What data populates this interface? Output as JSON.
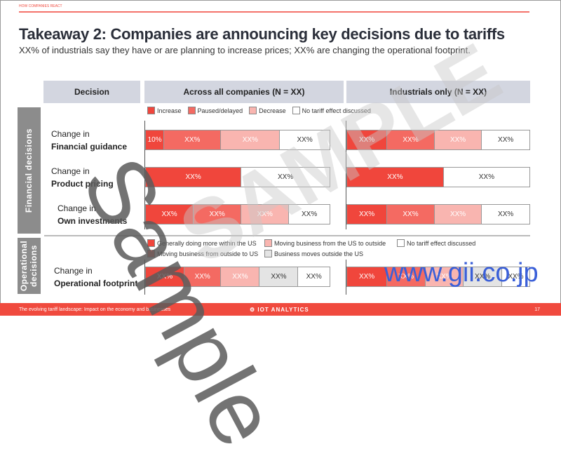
{
  "section": "HOW COMPANIES REACT",
  "title": "Takeaway 2: Companies are announcing key decisions due to tariffs",
  "subtitle": "XX% of industrials say they have or are planning to increase prices; XX% are changing the operational footprint.",
  "headers": {
    "decision": "Decision",
    "all": "Across all companies (N = XX)",
    "industrials": "Industrials only (N = XX)"
  },
  "groups": {
    "financial": "Financial decisions",
    "operational": "Operational decisions"
  },
  "colors": {
    "c1": "#f0463c",
    "c2": "#f46a62",
    "c3": "#f9b5b0",
    "c4": "#e4e4e4",
    "c5": "#ffffff"
  },
  "legend_financial": [
    "Increase",
    "Paused/delayed",
    "Decrease",
    "No tariff effect discussed"
  ],
  "legend_operational": [
    "Generally doing more within the US",
    "Moving business from outside to US",
    "Moving business from the US to outside",
    "Business moves outside the US",
    "No tariff effect discussed"
  ],
  "rows": [
    {
      "line1": "Change in",
      "line2": "Financial guidance",
      "all": [
        {
          "v": "10%",
          "p": 10,
          "c": "c1"
        },
        {
          "v": "XX%",
          "p": 31,
          "c": "c2"
        },
        {
          "v": "XX%",
          "p": 32,
          "c": "c3"
        },
        {
          "v": "XX%",
          "p": 27,
          "c": "c5"
        }
      ],
      "ind": [
        {
          "v": "XX%",
          "p": 22,
          "c": "c1"
        },
        {
          "v": "XX%",
          "p": 26,
          "c": "c2"
        },
        {
          "v": "XX%",
          "p": 26,
          "c": "c3"
        },
        {
          "v": "XX%",
          "p": 26,
          "c": "c5"
        }
      ]
    },
    {
      "line1": "Change in",
      "line2": "Product pricing",
      "all": [
        {
          "v": "XX%",
          "p": 52,
          "c": "c1"
        },
        {
          "v": "XX%",
          "p": 48,
          "c": "c5"
        }
      ],
      "ind": [
        {
          "v": "XX%",
          "p": 53,
          "c": "c1"
        },
        {
          "v": "XX%",
          "p": 47,
          "c": "c5"
        }
      ]
    },
    {
      "line1": "Change in",
      "line2": "Own investments",
      "all": [
        {
          "v": "XX%",
          "p": 26,
          "c": "c1"
        },
        {
          "v": "XX%",
          "p": 26,
          "c": "c2"
        },
        {
          "v": "XX%",
          "p": 26,
          "c": "c3"
        },
        {
          "v": "XX%",
          "p": 22,
          "c": "c5"
        }
      ],
      "ind": [
        {
          "v": "XX%",
          "p": 22,
          "c": "c1"
        },
        {
          "v": "XX%",
          "p": 26,
          "c": "c2"
        },
        {
          "v": "XX%",
          "p": 26,
          "c": "c3"
        },
        {
          "v": "XX%",
          "p": 26,
          "c": "c5"
        }
      ]
    },
    {
      "line1": "Change in",
      "line2": "Operational footprint",
      "all": [
        {
          "v": "XX%",
          "p": 21,
          "c": "c1"
        },
        {
          "v": "XX%",
          "p": 20,
          "c": "c2"
        },
        {
          "v": "XX%",
          "p": 21,
          "c": "c3"
        },
        {
          "v": "XX%",
          "p": 21,
          "c": "c4"
        },
        {
          "v": "XX%",
          "p": 17,
          "c": "c5"
        }
      ],
      "ind": [
        {
          "v": "XX%",
          "p": 22,
          "c": "c1"
        },
        {
          "v": "XX%",
          "p": 21,
          "c": "c2"
        },
        {
          "v": "XX%",
          "p": 21,
          "c": "c3"
        },
        {
          "v": "XX%",
          "p": 21,
          "c": "c4"
        },
        {
          "v": "XX%",
          "p": 15,
          "c": "c5"
        }
      ]
    }
  ],
  "footer": {
    "left": "The evolving tariff landscape: Impact on the economy and businesses",
    "brand": "IOT ANALYTICS",
    "page": "17"
  },
  "watermarks": {
    "sample": "Sample",
    "sample2": "SAMPLE",
    "site": "www.gii.co.jp"
  }
}
